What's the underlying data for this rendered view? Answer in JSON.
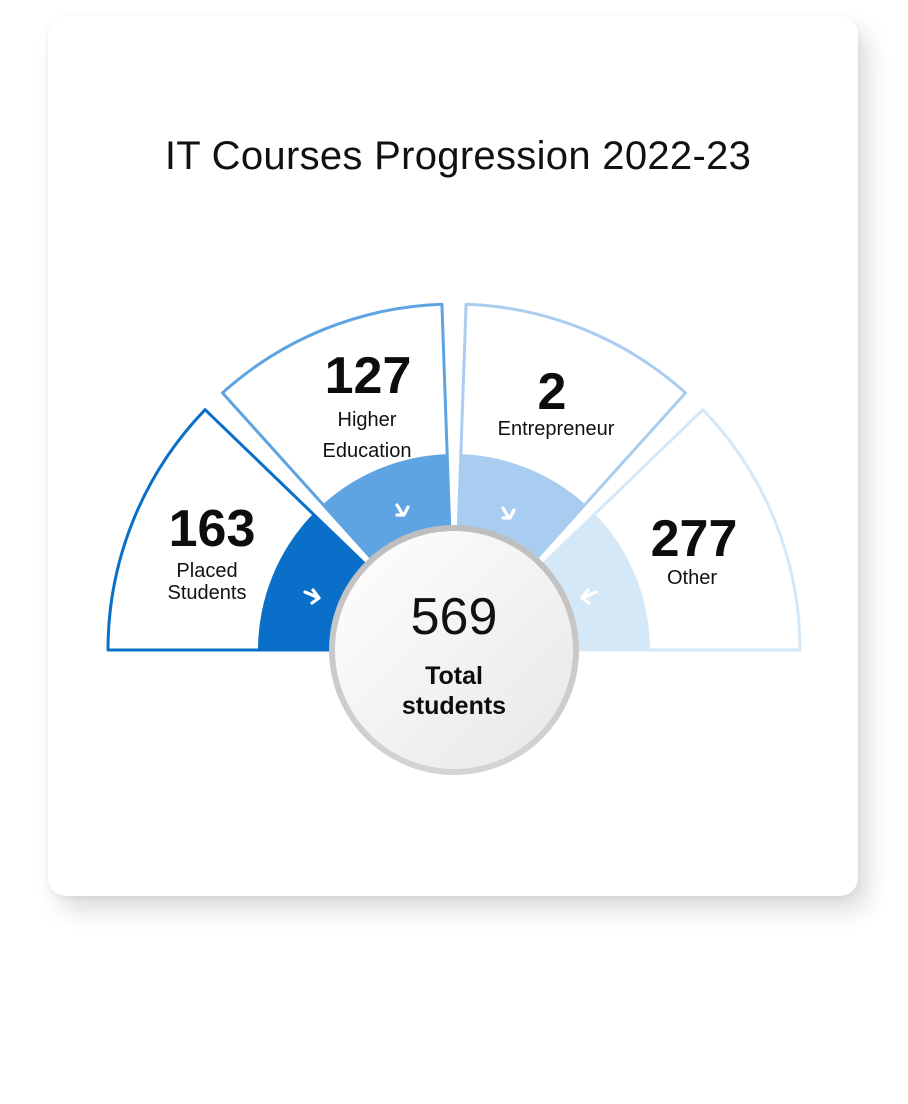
{
  "chart_data": {
    "type": "pie",
    "title": "IT Courses Progression 2022-23",
    "segments": [
      {
        "value": 163,
        "label_lines": [
          "Placed",
          "Students"
        ],
        "color": "#0a6fc9"
      },
      {
        "value": 127,
        "label_lines": [
          "Higher",
          "Education"
        ],
        "color": "#5ea3e2"
      },
      {
        "value": 2,
        "label_lines": [
          "Entrepreneur"
        ],
        "color": "#a9cdf1"
      },
      {
        "value": 277,
        "label_lines": [
          "Other"
        ],
        "color": "#d5e8f8"
      }
    ],
    "total": {
      "value": 569,
      "label_lines": [
        "Total",
        "students"
      ]
    }
  }
}
